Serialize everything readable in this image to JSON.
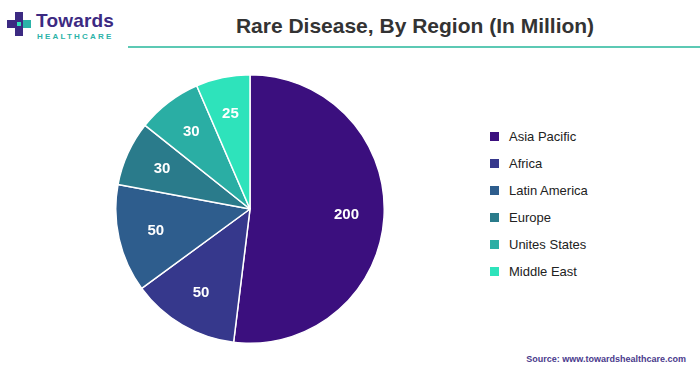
{
  "header": {
    "logo": "Towards",
    "logo_sub": "HEALTHCARE"
  },
  "chart_data": {
    "type": "pie",
    "title": "Rare Disease, By Region (In Million)",
    "categories": [
      "Asia Pacific",
      "Africa",
      "Latin America",
      "Europe",
      "Unites States",
      "Middle East"
    ],
    "values": [
      200,
      50,
      50,
      30,
      30,
      25
    ],
    "colors": [
      "#3b0f7e",
      "#36388c",
      "#2e5d8d",
      "#2a7b8b",
      "#2aaea4",
      "#2ee3bb"
    ],
    "legend": "right",
    "data_labels": true
  },
  "source": "Source: www.towardshealthcare.com"
}
